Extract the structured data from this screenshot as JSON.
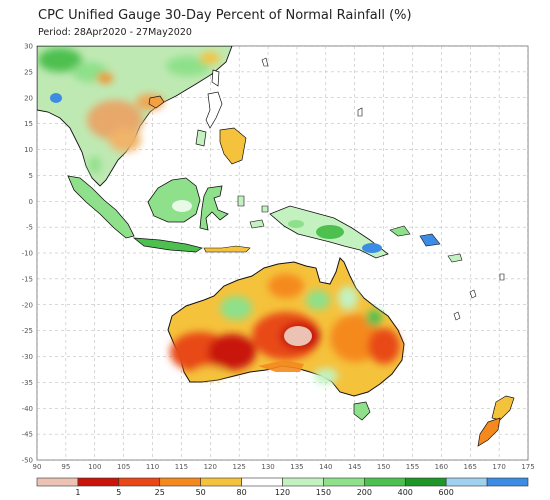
{
  "title": "CPC Unified Gauge 30-Day Percent of Normal Rainfall (%)",
  "period": "Period: 28Apr2020 - 27May2020",
  "map": {
    "lon_range": [
      90,
      175
    ],
    "lat_range": [
      -50,
      30
    ],
    "lon_ticks": [
      "90",
      "95",
      "100",
      "105",
      "110",
      "115",
      "120",
      "125",
      "130",
      "135",
      "140",
      "145",
      "150",
      "155",
      "160",
      "165",
      "170",
      "175"
    ],
    "lat_ticks": [
      "30",
      "25",
      "20",
      "15",
      "10",
      "5",
      "0",
      "-5",
      "-10",
      "-15",
      "-20",
      "-25",
      "-30",
      "-35",
      "-40",
      "-45",
      "-50"
    ]
  },
  "legend": {
    "colors": [
      "#ebc2b4",
      "#c8140a",
      "#e84818",
      "#f5891e",
      "#f5c23c",
      "#ffffff",
      "#c3f2c0",
      "#8ee08a",
      "#4ec050",
      "#1e9628",
      "#a0d2f0",
      "#3c8ce6"
    ],
    "labels": [
      "1",
      "5",
      "25",
      "50",
      "80",
      "120",
      "150",
      "200",
      "400",
      "600"
    ]
  },
  "colors": {
    "coast": "#111111",
    "grid": "#b0b0b0",
    "ocean": "#ffffff"
  }
}
